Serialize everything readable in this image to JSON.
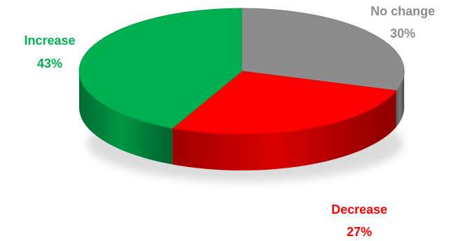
{
  "chart_data": {
    "type": "pie",
    "style": "3d",
    "slices": [
      {
        "label": "No change",
        "value": 30,
        "value_label": "30%",
        "color": "#8c8c8c"
      },
      {
        "label": "Decrease",
        "value": 27,
        "value_label": "27%",
        "color": "#ff0000"
      },
      {
        "label": "Increase",
        "value": 43,
        "value_label": "43%",
        "color": "#00b050"
      }
    ],
    "start": "12 o'clock",
    "direction": "clockwise",
    "legend": "none"
  }
}
